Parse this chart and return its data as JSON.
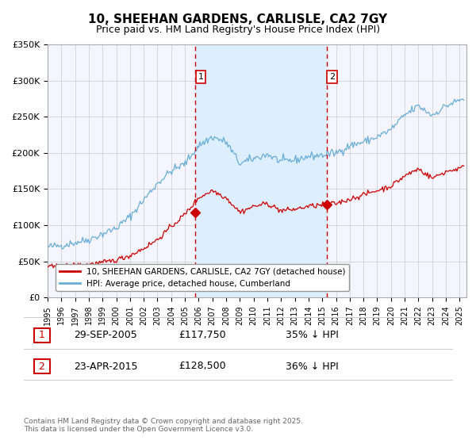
{
  "title": "10, SHEEHAN GARDENS, CARLISLE, CA2 7GY",
  "subtitle": "Price paid vs. HM Land Registry's House Price Index (HPI)",
  "hpi_color": "#6aaed6",
  "price_color": "#cc0000",
  "marker_color": "#cc0000",
  "dashed_line_color": "#cc0000",
  "shade_color": "#ddeeff",
  "grid_color": "#cccccc",
  "bg_color": "#f5f5ff",
  "ylim": [
    0,
    350000
  ],
  "yticks": [
    0,
    50000,
    100000,
    150000,
    200000,
    250000,
    300000,
    350000
  ],
  "xlim_start": 1995.0,
  "xlim_end": 2025.5,
  "sale1_year": 2005.746,
  "sale1_price": 117750,
  "sale2_year": 2015.31,
  "sale2_price": 128500,
  "sale1_label": "1",
  "sale2_label": "2",
  "sale1_date": "29-SEP-2005",
  "sale1_amount": "£117,750",
  "sale1_note": "35% ↓ HPI",
  "sale2_date": "23-APR-2015",
  "sale2_amount": "£128,500",
  "sale2_note": "36% ↓ HPI",
  "legend1_label": "10, SHEEHAN GARDENS, CARLISLE, CA2 7GY (detached house)",
  "legend2_label": "HPI: Average price, detached house, Cumberland",
  "footer": "Contains HM Land Registry data © Crown copyright and database right 2025.\nThis data is licensed under the Open Government Licence v3.0.",
  "hpi_base_years": [
    1995,
    1996,
    1997,
    1998,
    1999,
    2000,
    2001,
    2002,
    2003,
    2004,
    2005,
    2006,
    2007,
    2008,
    2009,
    2010,
    2011,
    2012,
    2013,
    2014,
    2015,
    2016,
    2017,
    2018,
    2019,
    2020,
    2021,
    2022,
    2023,
    2024,
    2025.3
  ],
  "hpi_base_vals": [
    70000,
    72000,
    76000,
    80000,
    88000,
    96000,
    112000,
    135000,
    158000,
    175000,
    185000,
    210000,
    222000,
    215000,
    185000,
    192000,
    198000,
    188000,
    190000,
    195000,
    197000,
    200000,
    210000,
    215000,
    222000,
    232000,
    252000,
    265000,
    252000,
    265000,
    275000
  ],
  "price_base_years": [
    1995,
    1996,
    1997,
    1998,
    1999,
    2000,
    2001,
    2002,
    2003,
    2004,
    2005,
    2006,
    2007,
    2008,
    2009,
    2010,
    2011,
    2012,
    2013,
    2014,
    2015,
    2016,
    2017,
    2018,
    2019,
    2020,
    2021,
    2022,
    2023,
    2024,
    2025.3
  ],
  "price_base_vals": [
    42000,
    43000,
    44500,
    46000,
    48000,
    52000,
    58000,
    68000,
    80000,
    98000,
    115000,
    138000,
    148000,
    138000,
    118000,
    126000,
    130000,
    120000,
    122000,
    126000,
    128000,
    130000,
    136000,
    142000,
    148000,
    154000,
    168000,
    178000,
    165000,
    174000,
    180000
  ]
}
